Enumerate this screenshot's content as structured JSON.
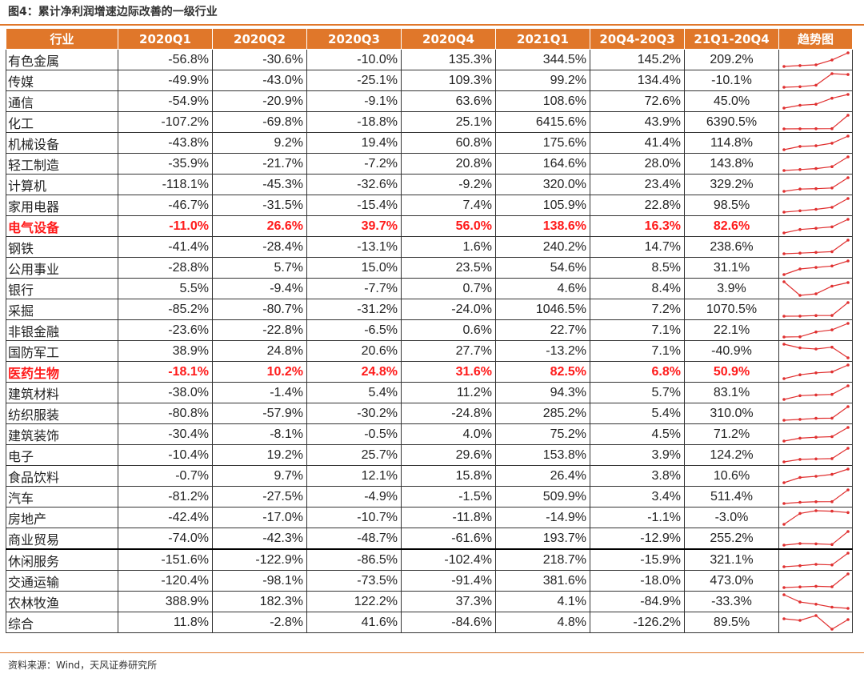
{
  "title": "图4：累计净利润增速边际改善的一级行业",
  "source": "资料来源：Wind，天风证券研究所",
  "colors": {
    "header_bg": "#e0772a",
    "highlight": "#ff1a1a",
    "trend_line": "#e03030"
  },
  "headers": [
    "行业",
    "2020Q1",
    "2020Q2",
    "2020Q3",
    "2020Q4",
    "2021Q1",
    "20Q4-20Q3",
    "21Q1-20Q4",
    "趋势图"
  ],
  "rows": [
    {
      "name": "有色金属",
      "v": [
        "-56.8%",
        "-30.6%",
        "-10.0%",
        "135.3%",
        "344.5%",
        "145.2%",
        "209.2%"
      ]
    },
    {
      "name": "传媒",
      "v": [
        "-49.9%",
        "-43.0%",
        "-25.1%",
        "109.3%",
        "99.2%",
        "134.4%",
        "-10.1%"
      ]
    },
    {
      "name": "通信",
      "v": [
        "-54.9%",
        "-20.9%",
        "-9.1%",
        "63.6%",
        "108.6%",
        "72.6%",
        "45.0%"
      ]
    },
    {
      "name": "化工",
      "v": [
        "-107.2%",
        "-69.8%",
        "-18.8%",
        "25.1%",
        "6415.6%",
        "43.9%",
        "6390.5%"
      ]
    },
    {
      "name": "机械设备",
      "v": [
        "-43.8%",
        "9.2%",
        "19.4%",
        "60.8%",
        "175.6%",
        "41.4%",
        "114.8%"
      ]
    },
    {
      "name": "轻工制造",
      "v": [
        "-35.9%",
        "-21.7%",
        "-7.2%",
        "20.8%",
        "164.6%",
        "28.0%",
        "143.8%"
      ]
    },
    {
      "name": "计算机",
      "v": [
        "-118.1%",
        "-45.3%",
        "-32.6%",
        "-9.2%",
        "320.0%",
        "23.4%",
        "329.2%"
      ]
    },
    {
      "name": "家用电器",
      "v": [
        "-46.7%",
        "-31.5%",
        "-15.4%",
        "7.4%",
        "105.9%",
        "22.8%",
        "98.5%"
      ]
    },
    {
      "name": "电气设备",
      "v": [
        "-11.0%",
        "26.6%",
        "39.7%",
        "56.0%",
        "138.6%",
        "16.3%",
        "82.6%"
      ],
      "hl": true
    },
    {
      "name": "钢铁",
      "v": [
        "-41.4%",
        "-28.4%",
        "-13.1%",
        "1.6%",
        "240.2%",
        "14.7%",
        "238.6%"
      ]
    },
    {
      "name": "公用事业",
      "v": [
        "-28.8%",
        "5.7%",
        "15.0%",
        "23.5%",
        "54.6%",
        "8.5%",
        "31.1%"
      ]
    },
    {
      "name": "银行",
      "v": [
        "5.5%",
        "-9.4%",
        "-7.7%",
        "0.7%",
        "4.6%",
        "8.4%",
        "3.9%"
      ]
    },
    {
      "name": "采掘",
      "v": [
        "-85.2%",
        "-80.7%",
        "-31.2%",
        "-24.0%",
        "1046.5%",
        "7.2%",
        "1070.5%"
      ]
    },
    {
      "name": "非银金融",
      "v": [
        "-23.6%",
        "-22.8%",
        "-6.5%",
        "0.6%",
        "22.7%",
        "7.1%",
        "22.1%"
      ]
    },
    {
      "name": "国防军工",
      "v": [
        "38.9%",
        "24.8%",
        "20.6%",
        "27.7%",
        "-13.2%",
        "7.1%",
        "-40.9%"
      ]
    },
    {
      "name": "医药生物",
      "v": [
        "-18.1%",
        "10.2%",
        "24.8%",
        "31.6%",
        "82.5%",
        "6.8%",
        "50.9%"
      ],
      "hl": true
    },
    {
      "name": "建筑材料",
      "v": [
        "-38.0%",
        "-1.4%",
        "5.4%",
        "11.2%",
        "94.3%",
        "5.7%",
        "83.1%"
      ]
    },
    {
      "name": "纺织服装",
      "v": [
        "-80.8%",
        "-57.9%",
        "-30.2%",
        "-24.8%",
        "285.2%",
        "5.4%",
        "310.0%"
      ]
    },
    {
      "name": "建筑装饰",
      "v": [
        "-30.4%",
        "-8.1%",
        "-0.5%",
        "4.0%",
        "75.2%",
        "4.5%",
        "71.2%"
      ]
    },
    {
      "name": "电子",
      "v": [
        "-10.4%",
        "19.2%",
        "25.7%",
        "29.6%",
        "153.8%",
        "3.9%",
        "124.2%"
      ]
    },
    {
      "name": "食品饮料",
      "v": [
        "-0.7%",
        "9.7%",
        "12.1%",
        "15.8%",
        "26.4%",
        "3.8%",
        "10.6%"
      ]
    },
    {
      "name": "汽车",
      "v": [
        "-81.2%",
        "-27.5%",
        "-4.9%",
        "-1.5%",
        "509.9%",
        "3.4%",
        "511.4%"
      ]
    },
    {
      "name": "房地产",
      "v": [
        "-42.4%",
        "-17.0%",
        "-10.7%",
        "-11.8%",
        "-14.9%",
        "-1.1%",
        "-3.0%"
      ]
    },
    {
      "name": "商业贸易",
      "v": [
        "-74.0%",
        "-42.3%",
        "-48.7%",
        "-61.6%",
        "193.7%",
        "-12.9%",
        "255.2%"
      ],
      "thick": true
    },
    {
      "name": "休闲服务",
      "v": [
        "-151.6%",
        "-122.9%",
        "-86.5%",
        "-102.4%",
        "218.7%",
        "-15.9%",
        "321.1%"
      ]
    },
    {
      "name": "交通运输",
      "v": [
        "-120.4%",
        "-98.1%",
        "-73.5%",
        "-91.4%",
        "381.6%",
        "-18.0%",
        "473.0%"
      ]
    },
    {
      "name": "农林牧渔",
      "v": [
        "388.9%",
        "182.3%",
        "122.2%",
        "37.3%",
        "4.1%",
        "-84.9%",
        "-33.3%"
      ]
    },
    {
      "name": "综合",
      "v": [
        "11.8%",
        "-2.8%",
        "41.6%",
        "-84.6%",
        "4.8%",
        "-126.2%",
        "89.5%"
      ]
    }
  ]
}
